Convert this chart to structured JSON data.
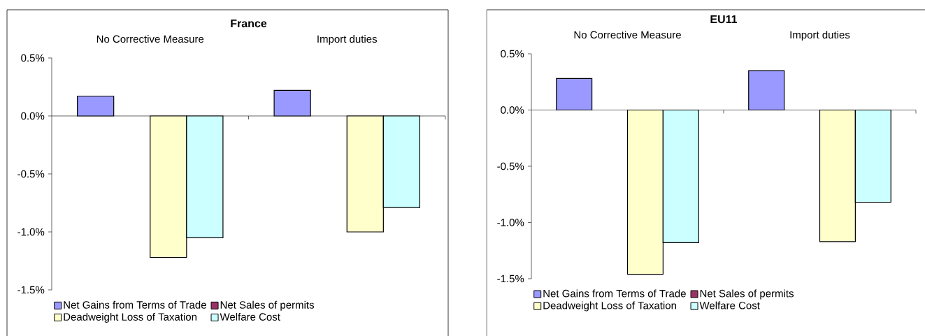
{
  "chart_data": [
    {
      "type": "bar",
      "title": "France",
      "categories": [
        "No Corrective Measure",
        "Import duties"
      ],
      "series": [
        {
          "name": "Net Gains from Terms of Trade",
          "color": "#9999ff",
          "values": [
            0.17,
            0.22
          ]
        },
        {
          "name": "Net Sales of permits",
          "color": "#993366",
          "values": [
            null,
            null
          ]
        },
        {
          "name": "Deadweight Loss of Taxation",
          "color": "#ffffcc",
          "values": [
            -1.22,
            -1.0
          ]
        },
        {
          "name": "Welfare Cost",
          "color": "#ccffff",
          "values": [
            -1.05,
            -0.79
          ]
        }
      ],
      "ylim": [
        -1.5,
        0.5
      ],
      "yticks": [
        {
          "value": -1.5,
          "label": "-1.5%"
        },
        {
          "value": -1.0,
          "label": "-1.0%"
        },
        {
          "value": -0.5,
          "label": "-0.5%"
        },
        {
          "value": 0.0,
          "label": "0.0%"
        },
        {
          "value": 0.5,
          "label": "0.5%"
        }
      ],
      "legend": "bottom"
    },
    {
      "type": "bar",
      "title": "EU11",
      "categories": [
        "No Corrective Measure",
        "Import duties"
      ],
      "series": [
        {
          "name": "Net Gains from Terms of Trade",
          "color": "#9999ff",
          "values": [
            0.28,
            0.35
          ]
        },
        {
          "name": "Net Sales of permits",
          "color": "#993366",
          "values": [
            null,
            null
          ]
        },
        {
          "name": "Deadweight Loss of Taxation",
          "color": "#ffffcc",
          "values": [
            -1.46,
            -1.17
          ]
        },
        {
          "name": "Welfare Cost",
          "color": "#ccffff",
          "values": [
            -1.18,
            -0.82
          ]
        }
      ],
      "ylim": [
        -1.5,
        0.5
      ],
      "yticks": [
        {
          "value": -1.5,
          "label": "-1.5%"
        },
        {
          "value": -1.0,
          "label": "-1.0%"
        },
        {
          "value": -0.5,
          "label": "-0.5%"
        },
        {
          "value": 0.0,
          "label": "0.0%"
        },
        {
          "value": 0.5,
          "label": "0.5%"
        }
      ],
      "legend": "bottom"
    }
  ]
}
